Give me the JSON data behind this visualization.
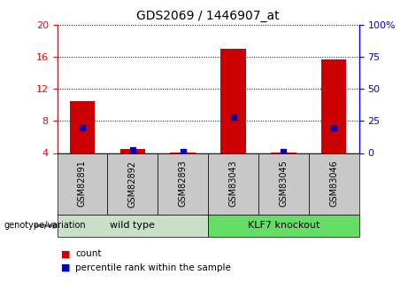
{
  "title": "GDS2069 / 1446907_at",
  "samples": [
    "GSM82891",
    "GSM82892",
    "GSM82893",
    "GSM83043",
    "GSM83045",
    "GSM83046"
  ],
  "red_counts": [
    10.5,
    4.5,
    4.05,
    17.0,
    4.05,
    15.7
  ],
  "blue_percentiles": [
    20.0,
    2.5,
    0.8,
    28.0,
    0.8,
    20.0
  ],
  "ylim_left": [
    4,
    20
  ],
  "ylim_right": [
    0,
    100
  ],
  "yticks_left": [
    4,
    8,
    12,
    16,
    20
  ],
  "yticks_right": [
    0,
    25,
    50,
    75,
    100
  ],
  "ytick_labels_right": [
    "0",
    "25",
    "50",
    "75",
    "100%"
  ],
  "group1_label": "wild type",
  "group2_label": "KLF7 knockout",
  "group1_indices": [
    0,
    1,
    2
  ],
  "group2_indices": [
    3,
    4,
    5
  ],
  "legend_count_label": "count",
  "legend_percentile_label": "percentile rank within the sample",
  "genotype_label": "genotype/variation",
  "bar_color_red": "#cc0000",
  "bar_color_blue": "#0000bb",
  "group1_bg": "#c8e0c8",
  "group2_bg": "#66dd66",
  "tick_label_bg": "#c8c8c8",
  "bar_width": 0.5,
  "blue_marker_size": 5,
  "xlim": [
    -0.5,
    5.5
  ]
}
